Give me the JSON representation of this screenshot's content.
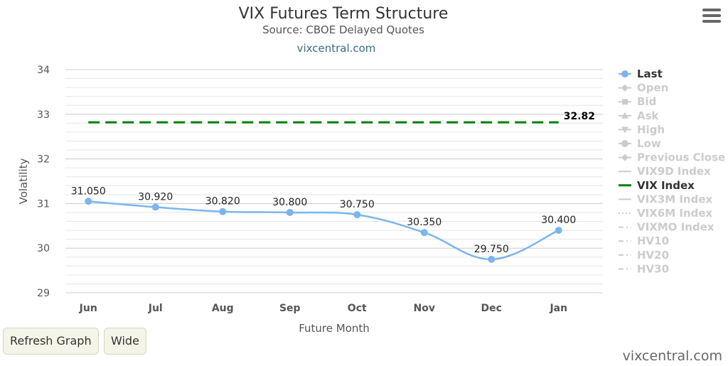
{
  "chart_data": {
    "type": "line",
    "title": "VIX Futures Term Structure",
    "subtitle": "Source: CBOE Delayed Quotes",
    "source_link": "vixcentral.com",
    "xlabel": "Future Month",
    "ylabel": "Volatility",
    "ylim": [
      29,
      34
    ],
    "yticks": [
      29,
      30,
      31,
      32,
      33,
      34
    ],
    "grid": true,
    "categories": [
      "Jun",
      "Jul",
      "Aug",
      "Sep",
      "Oct",
      "Nov",
      "Dec",
      "Jan"
    ],
    "series": [
      {
        "name": "Last",
        "color": "#7cb5ec",
        "values": [
          31.05,
          30.92,
          30.82,
          30.8,
          30.75,
          30.35,
          29.75,
          30.4
        ],
        "labels": [
          "31.050",
          "30.920",
          "30.820",
          "30.800",
          "30.750",
          "30.350",
          "29.750",
          "30.400"
        ]
      },
      {
        "name": "VIX Index",
        "color": "#008000",
        "dash": true,
        "values": [
          32.82,
          32.82,
          32.82,
          32.82,
          32.82,
          32.82,
          32.82,
          32.82
        ],
        "end_label": "32.82"
      }
    ],
    "legend": {
      "position": "right",
      "items": [
        {
          "name": "Last",
          "active": true,
          "symbol": "circle"
        },
        {
          "name": "Open",
          "active": false,
          "symbol": "diamond"
        },
        {
          "name": "Bid",
          "active": false,
          "symbol": "square"
        },
        {
          "name": "Ask",
          "active": false,
          "symbol": "triangle"
        },
        {
          "name": "High",
          "active": false,
          "symbol": "triangle-down"
        },
        {
          "name": "Low",
          "active": false,
          "symbol": "circle"
        },
        {
          "name": "Previous Close",
          "active": false,
          "symbol": "diamond"
        },
        {
          "name": "VIX9D Index",
          "active": false,
          "symbol": "line"
        },
        {
          "name": "VIX Index",
          "active": true,
          "symbol": "line",
          "color": "#008000"
        },
        {
          "name": "VIX3M Index",
          "active": false,
          "symbol": "line"
        },
        {
          "name": "VIX6M Index",
          "active": false,
          "symbol": "dotted"
        },
        {
          "name": "VIXMO Index",
          "active": false,
          "symbol": "dashdot"
        },
        {
          "name": "HV10",
          "active": false,
          "symbol": "dashdot"
        },
        {
          "name": "HV20",
          "active": false,
          "symbol": "dashdot"
        },
        {
          "name": "HV30",
          "active": false,
          "symbol": "dashdot"
        }
      ]
    }
  },
  "controls": {
    "refresh_label": "Refresh Graph",
    "wide_label": "Wide"
  },
  "footer": {
    "credit": "vixcentral.com"
  }
}
